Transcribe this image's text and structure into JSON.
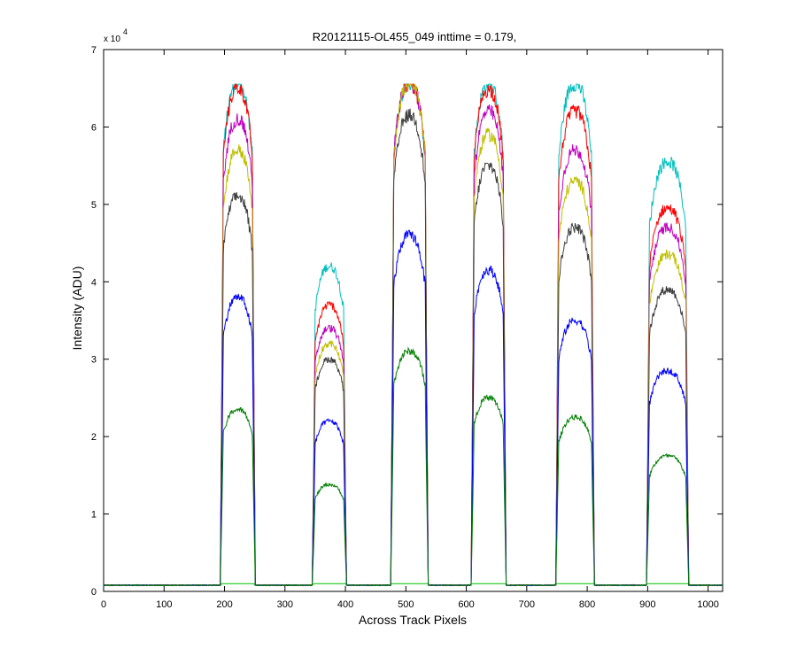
{
  "chart_data": {
    "type": "line",
    "title": "R20121115-OL455_049 inttime = 0.179,",
    "xlabel": "Across Track Pixels",
    "ylabel": "Intensity (ADU)",
    "xlim": [
      0,
      1024
    ],
    "ylim": [
      0,
      70000
    ],
    "xticks": [
      0,
      100,
      200,
      300,
      400,
      500,
      600,
      700,
      800,
      900,
      1000
    ],
    "yticks": [
      0,
      1,
      2,
      3,
      4,
      5,
      6,
      7
    ],
    "xtick_labels": [
      "0",
      "100",
      "200",
      "300",
      "400",
      "500",
      "600",
      "700",
      "800",
      "900",
      "1000"
    ],
    "ytick_labels": [
      "0",
      "1",
      "2",
      "3",
      "4",
      "5",
      "6",
      "7"
    ],
    "y_multiplier_base": "x 10",
    "y_multiplier_exp": "4",
    "grid": false,
    "saturation": 65535,
    "baseline": 800,
    "bands": [
      {
        "start": 193,
        "end": 251
      },
      {
        "start": 345,
        "end": 402
      },
      {
        "start": 475,
        "end": 537
      },
      {
        "start": 608,
        "end": 666
      },
      {
        "start": 748,
        "end": 812
      },
      {
        "start": 898,
        "end": 968
      }
    ],
    "series": [
      {
        "color": "#00bfbf",
        "peaks": [
          65535,
          42000,
          65535,
          65535,
          65535,
          55500
        ]
      },
      {
        "color": "#ff0000",
        "peaks": [
          65000,
          37000,
          65535,
          64800,
          62000,
          49500
        ]
      },
      {
        "color": "#bf00bf",
        "peaks": [
          61000,
          34000,
          65535,
          62000,
          57000,
          47000
        ]
      },
      {
        "color": "#bfbf00",
        "peaks": [
          57000,
          32000,
          65535,
          59000,
          53000,
          43500
        ]
      },
      {
        "color": "#404040",
        "peaks": [
          51000,
          30000,
          61500,
          55000,
          47000,
          39000
        ]
      },
      {
        "color": "#0000ff",
        "peaks": [
          38000,
          22000,
          46000,
          41500,
          35000,
          28500
        ]
      },
      {
        "color": "#008000",
        "peaks": [
          23500,
          13800,
          31000,
          25000,
          22500,
          17500
        ]
      }
    ],
    "low_series": {
      "color": "#00bf00",
      "value": 1000
    }
  }
}
